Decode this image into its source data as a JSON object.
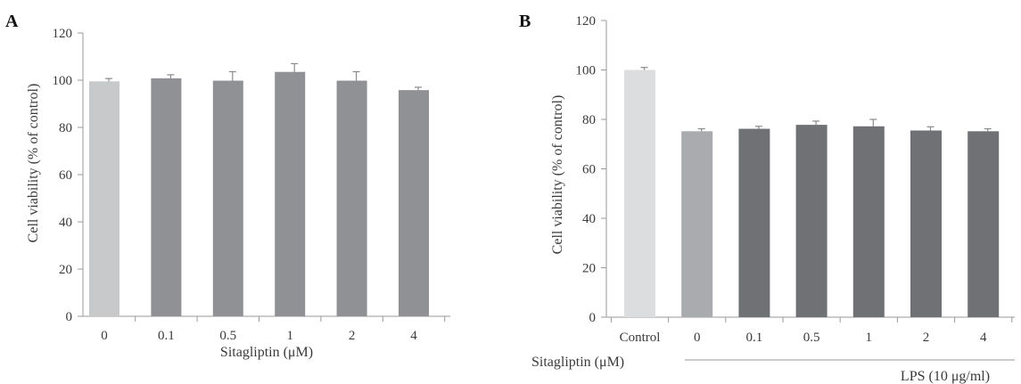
{
  "chart_data": [
    {
      "panel": "A",
      "type": "bar",
      "categories": [
        "0",
        "0.1",
        "0.5",
        "1",
        "2",
        "4"
      ],
      "values": [
        99.5,
        100.8,
        99.8,
        103.5,
        99.8,
        95.8
      ],
      "errors": [
        1.2,
        1.5,
        3.8,
        3.5,
        3.8,
        1.2
      ],
      "bar_colors": [
        "#c8c9cb",
        "#8f9194",
        "#8f9194",
        "#8f9194",
        "#8f9194",
        "#8f9194"
      ],
      "xlabel": "Sitagliptin (μM)",
      "ylabel": "Cell viability (% of control)",
      "ylim": [
        0,
        120
      ],
      "yticks": [
        "0",
        "20",
        "40",
        "60",
        "80",
        "100",
        "120"
      ],
      "grid": false
    },
    {
      "panel": "B",
      "type": "bar",
      "categories": [
        "Control",
        "0",
        "0.1",
        "0.5",
        "1",
        "2",
        "4"
      ],
      "values": [
        100.0,
        75.2,
        76.2,
        77.8,
        77.2,
        75.5,
        75.2
      ],
      "errors": [
        1.0,
        1.0,
        1.0,
        1.5,
        2.8,
        1.5,
        1.0
      ],
      "bar_colors": [
        "#dcdddf",
        "#a9abae",
        "#6f7174",
        "#6f7174",
        "#6f7174",
        "#6f7174",
        "#6f7174"
      ],
      "row_label": "Sitagliptin (μM)",
      "group_label": "LPS (10 μg/ml)",
      "ylabel": "Cell viability (% of control)",
      "ylim": [
        0,
        120
      ],
      "yticks": [
        "0",
        "20",
        "40",
        "60",
        "80",
        "100",
        "120"
      ],
      "grid": false
    }
  ]
}
